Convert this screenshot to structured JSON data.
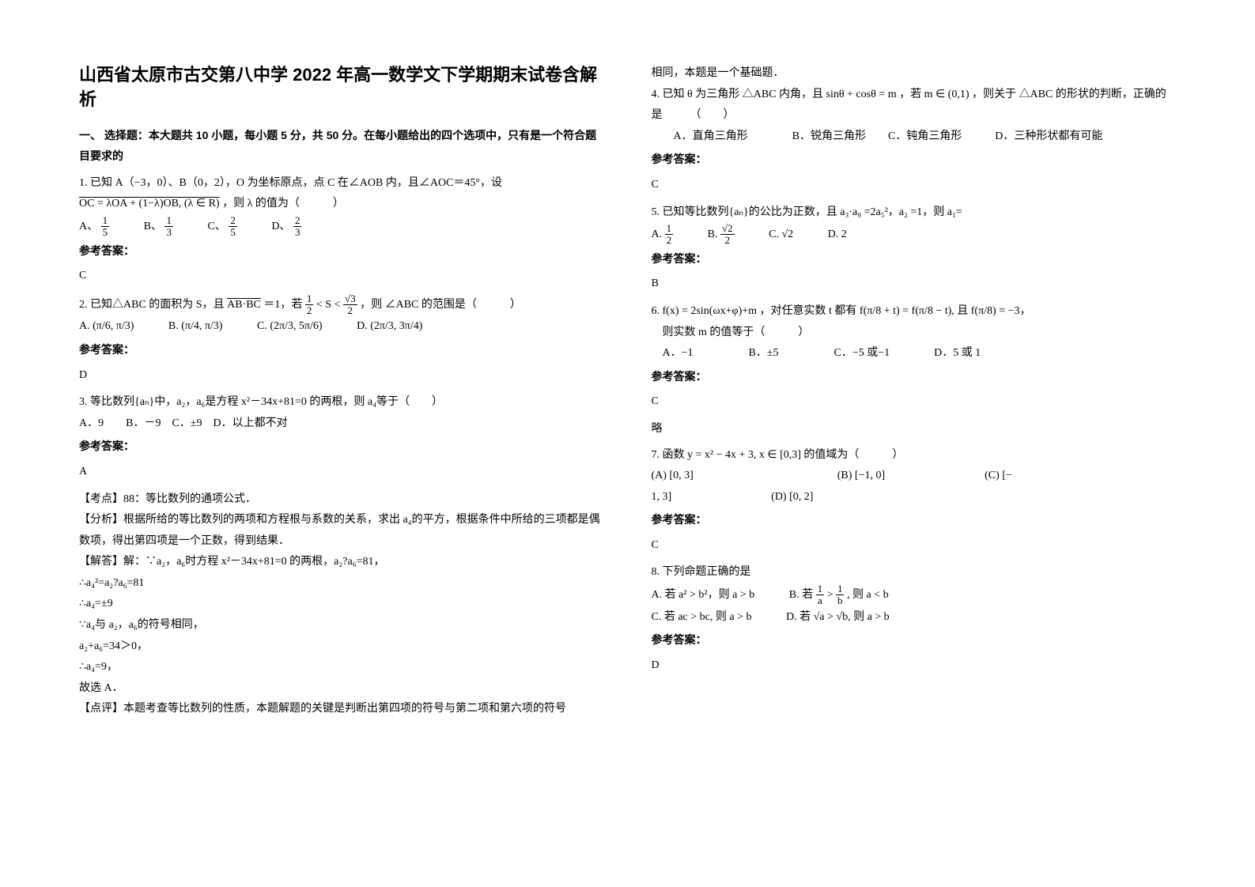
{
  "title": "山西省太原市古交第八中学 2022 年高一数学文下学期期末试卷含解析",
  "section1_heading": "一、 选择题：本大题共 10 小题，每小题 5 分，共 50 分。在每小题给出的四个选项中，只有是一个符合题目要求的",
  "q1": {
    "text1": "1. 已知 A（−3，0）、B（0，2），O 为坐标原点，点 C 在∠AOB 内，且∠AOC＝45°，设",
    "text2_pre": "OC = λOA + (1−λ)OB, (λ ∈ R)",
    "text2_post": "，则 λ 的值为（　　　）",
    "opt_a_label": "A、",
    "opt_a_num": "1",
    "opt_a_den": "5",
    "opt_b_label": "B、",
    "opt_b_num": "1",
    "opt_b_den": "3",
    "opt_c_label": "C、",
    "opt_c_num": "2",
    "opt_c_den": "5",
    "opt_d_label": "D、",
    "opt_d_num": "2",
    "opt_d_den": "3",
    "answer_label": "参考答案：",
    "answer": "C"
  },
  "q2": {
    "text_pre": "2. 已知△ABC 的面积为 S，且 ",
    "ab_bc": "AB·BC",
    "eq1": "＝1，若 ",
    "mid_num": "1",
    "mid_den": "2",
    "lt": " < S < ",
    "r_num": "√3",
    "r_den": "2",
    "text_post": "，则 ∠ABC 的范围是（　　　）",
    "opt_a_label": "A.",
    "opt_a": "(π/6, π/3)",
    "opt_b_label": "B.",
    "opt_b": "(π/4, π/3)",
    "opt_c_label": "C.",
    "opt_c": "(2π/3, 5π/6)",
    "opt_d_label": "D.",
    "opt_d": "(2π/3, 3π/4)",
    "answer_label": "参考答案：",
    "answer": "D"
  },
  "q3": {
    "text": "3. 等比数列{aₙ}中，a₂，a₆是方程 x²－34x+81=0 的两根，则 a₄等于（　　）",
    "opts": "A．9　　B．－9　C．±9　D．以上都不对",
    "answer_label": "参考答案：",
    "answer": "A",
    "kaodian": "【考点】88：等比数列的通项公式．",
    "fenxi": "【分析】根据所给的等比数列的两项和方程根与系数的关系，求出 a₄的平方，根据条件中所给的三项都是偶数项，得出第四项是一个正数，得到结果．",
    "jieda_label": "【解答】解：∵a₂，a₆时方程 x²－34x+81=0 的两根，a₂?a₆=81，",
    "line1": "∴a₄²=a₂?a₆=81",
    "line2": "∴a₄=±9",
    "line3": "∵a₄与 a₂，a₆的符号相同，",
    "line4": "a₂+a₆=34＞0，",
    "line5": "∴a₄=9，",
    "line6": "故选 A．",
    "dianping": "【点评】本题考查等比数列的性质，本题解题的关键是判断出第四项的符号与第二项和第六项的符号"
  },
  "col2_top": "相同，本题是一个基础题．",
  "q4": {
    "text_pre": "4. 已知 θ 为三角形 △ABC 内角，且 sinθ + cosθ = m ，若 m ∈ (0,1) ，则关于 △ABC 的形状的判断，正确的是　　　（　　）",
    "opts": "　　A．直角三角形　　　　B．锐角三角形　　C．钝角三角形　　　D．三种形状都有可能",
    "answer_label": "参考答案：",
    "answer": "C"
  },
  "q5": {
    "text": "5. 已知等比数列{aₙ}的公比为正数，且 a₃·a₉ =2a₅²，a₂ =1，则 a₁=",
    "opt_a_label": "A.",
    "opt_a_num": "1",
    "opt_a_den": "2",
    "opt_b_label": "B.",
    "opt_b_num": "√2",
    "opt_b_den": "2",
    "opt_c_label": "C.",
    "opt_c": "√2",
    "opt_d_label": "D. 2",
    "answer_label": "参考答案：",
    "answer": "B"
  },
  "q6": {
    "text_pre": "6. f(x) = 2sin(ωx+φ)+m ，对任意实数 t 都有 f(π/8 + t) = f(π/8 − t), 且 f(π/8) = −3，",
    "text2": "　则实数 m 的值等于（　　　）",
    "opts": "　A．−1　　　　　B．±5　　　　　C．−5 或−1　　　　D．5 或 1",
    "answer_label": "参考答案：",
    "answer": "C",
    "lue": "略"
  },
  "q7": {
    "text": "7. 函数 y = x² − 4x + 3, x ∈ [0,3] 的值域为（　　　）",
    "line1": "(A) [0, 3]　　　　　　　　　　　　　(B) [−1, 0]　　　　　　　　　(C) [−",
    "line2": "1, 3]　　　　　　　　　(D) [0, 2]",
    "answer_label": "参考答案：",
    "answer": "C"
  },
  "q8": {
    "text": "8. 下列命题正确的是",
    "opt_a": "A. 若 a² > b²，则 a > b",
    "opt_b_pre": "B. 若 ",
    "opt_b_num1": "1",
    "opt_b_den1": "a",
    "opt_b_gt": " > ",
    "opt_b_num2": "1",
    "opt_b_den2": "b",
    "opt_b_post": ", 则 a < b",
    "opt_c": "C. 若 ac > bc, 则 a > b",
    "opt_d": "D. 若 √a > √b, 则 a > b",
    "answer_label": "参考答案：",
    "answer": "D"
  }
}
